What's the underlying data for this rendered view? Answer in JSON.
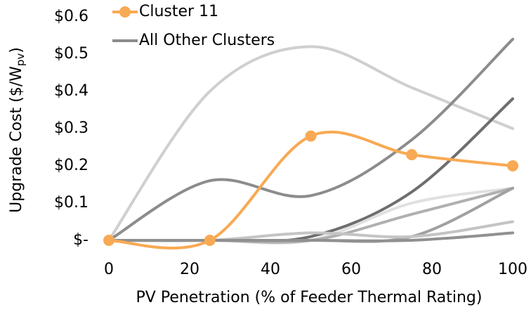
{
  "chart_data": {
    "type": "line",
    "x_label": "PV Penetration (% of Feeder Thermal Rating)",
    "y_label": {
      "main": "Upgrade Cost ($/W",
      "sub": "pv",
      "end": ")"
    },
    "x": [
      0,
      25,
      50,
      75,
      100
    ],
    "xlim": [
      0,
      100
    ],
    "xticks": [
      0,
      20,
      40,
      60,
      80,
      100
    ],
    "ylim": [
      0,
      0.6
    ],
    "yticks": [
      {
        "value": 0,
        "label": "$-"
      },
      {
        "value": 0.1,
        "label": "$0.1"
      },
      {
        "value": 0.2,
        "label": "$0.2"
      },
      {
        "value": 0.3,
        "label": "$0.3"
      },
      {
        "value": 0.4,
        "label": "$0.4"
      },
      {
        "value": 0.5,
        "label": "$0.5"
      },
      {
        "value": 0.6,
        "label": "$0.6"
      }
    ],
    "smooth": true,
    "series": [
      {
        "name": "All Other Clusters",
        "color": "#8c8c8c",
        "lines": [
          {
            "color": "#cfcfcf",
            "values": [
              0,
              0.4,
              0.52,
              0.41,
              0.3
            ]
          },
          {
            "color": "#8c8c8c",
            "values": [
              0,
              0.16,
              0.12,
              0.27,
              0.54
            ]
          },
          {
            "color": "#6e6e6e",
            "values": [
              0,
              0,
              0.01,
              0.13,
              0.38
            ]
          },
          {
            "color": "#e0e0e0",
            "values": [
              0,
              0,
              0,
              0.1,
              0.14
            ]
          },
          {
            "color": "#b0b0b0",
            "values": [
              0,
              0,
              0,
              0.07,
              0.14
            ]
          },
          {
            "color": "#a0a0a0",
            "values": [
              0,
              0,
              0,
              0.01,
              0.14
            ]
          },
          {
            "color": "#c4c4c4",
            "values": [
              0,
              0,
              0.02,
              0.01,
              0.05
            ]
          },
          {
            "color": "#909090",
            "values": [
              0,
              0,
              0,
              0,
              0.02
            ]
          }
        ]
      },
      {
        "name": "Cluster 11",
        "color": "#f8a953",
        "markers": true,
        "values": [
          0,
          0,
          0.28,
          0.23,
          0.2
        ]
      }
    ]
  }
}
